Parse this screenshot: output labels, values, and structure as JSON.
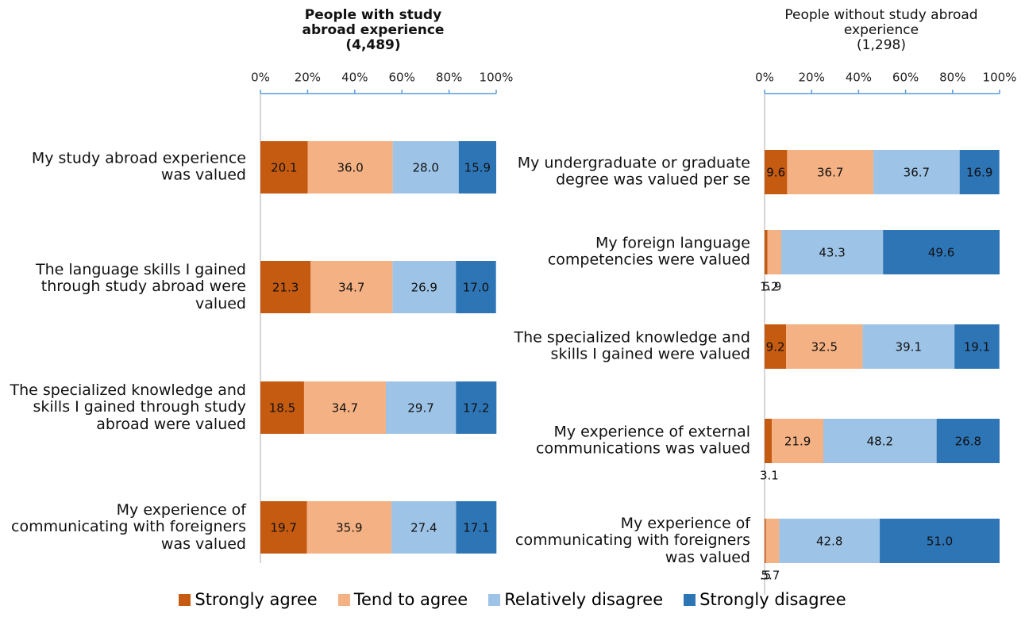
{
  "chart_data": [
    {
      "type": "bar",
      "title": "People with study abroad experience",
      "subtitle": "(4,489)",
      "categories": [
        "My study abroad experience was valued",
        "The language skills I gained through study abroad were valued",
        "The specialized knowledge and skills I gained through study abroad were valued",
        "My experience of communicating with foreigners was valued"
      ],
      "series": [
        {
          "name": "Strongly agree",
          "color": "#c55a11",
          "values": [
            20.1,
            21.3,
            18.5,
            19.7
          ],
          "value_labels": [
            "20.1",
            "21.3",
            "18.5",
            "19.7"
          ]
        },
        {
          "name": "Tend to agree",
          "color": "#f4b183",
          "values": [
            36,
            34.7,
            34.7,
            35.9
          ],
          "value_labels": [
            "36.0",
            "34.7",
            "34.7",
            "35.9"
          ]
        },
        {
          "name": "Relatively disagree",
          "color": "#9dc3e6",
          "values": [
            28,
            26.9,
            29.7,
            27.4
          ],
          "value_labels": [
            "28.0",
            "26.9",
            "29.7",
            "27.4"
          ]
        },
        {
          "name": "Strongly disagree",
          "color": "#2e75b6",
          "values": [
            15.9,
            17,
            17.2,
            17.1
          ],
          "value_labels": [
            "15.9",
            "17.0",
            "17.2",
            "17.1"
          ]
        }
      ],
      "xlim": [
        0,
        100
      ],
      "xticks": [
        {
          "value": 0,
          "label": "0%"
        },
        {
          "value": 20,
          "label": "20%"
        },
        {
          "value": 40,
          "label": "40%"
        },
        {
          "value": 60,
          "label": "60%"
        },
        {
          "value": 80,
          "label": "80%"
        },
        {
          "value": 100,
          "label": "100%"
        }
      ],
      "stacked": true,
      "title_bold": true
    },
    {
      "type": "bar",
      "title": "People without study abroad experience",
      "subtitle": "(1,298)",
      "categories": [
        "My undergraduate or graduate degree was valued per se",
        "My foreign language competencies were valued",
        "The specialized knowledge and skills I gained were valued",
        "My experience of external communications was valued",
        "My experience of communicating with foreigners was valued"
      ],
      "series": [
        {
          "name": "Strongly agree",
          "color": "#c55a11",
          "values": [
            9.6,
            1.2,
            9.2,
            3.1,
            0.5
          ],
          "value_labels": [
            "9.6",
            "1.2",
            "9.2",
            "3.1",
            ".5"
          ]
        },
        {
          "name": "Tend to agree",
          "color": "#f4b183",
          "values": [
            36.7,
            5.9,
            32.5,
            21.9,
            5.7
          ],
          "value_labels": [
            "36.7",
            "5.9",
            "32.5",
            "21.9",
            "5.7"
          ]
        },
        {
          "name": "Relatively disagree",
          "color": "#9dc3e6",
          "values": [
            36.7,
            43.3,
            39.1,
            48.2,
            42.8
          ],
          "value_labels": [
            "36.7",
            "43.3",
            "39.1",
            "48.2",
            "42.8"
          ]
        },
        {
          "name": "Strongly disagree",
          "color": "#2e75b6",
          "values": [
            16.9,
            49.6,
            19.1,
            26.8,
            51
          ],
          "value_labels": [
            "16.9",
            "49.6",
            "19.1",
            "26.8",
            "51.0"
          ]
        }
      ],
      "xlim": [
        0,
        100
      ],
      "xticks": [
        {
          "value": 0,
          "label": "0%"
        },
        {
          "value": 20,
          "label": "20%"
        },
        {
          "value": 40,
          "label": "40%"
        },
        {
          "value": 60,
          "label": "60%"
        },
        {
          "value": 80,
          "label": "80%"
        },
        {
          "value": 100,
          "label": "100%"
        }
      ],
      "stacked": true,
      "title_bold": false
    }
  ]
}
